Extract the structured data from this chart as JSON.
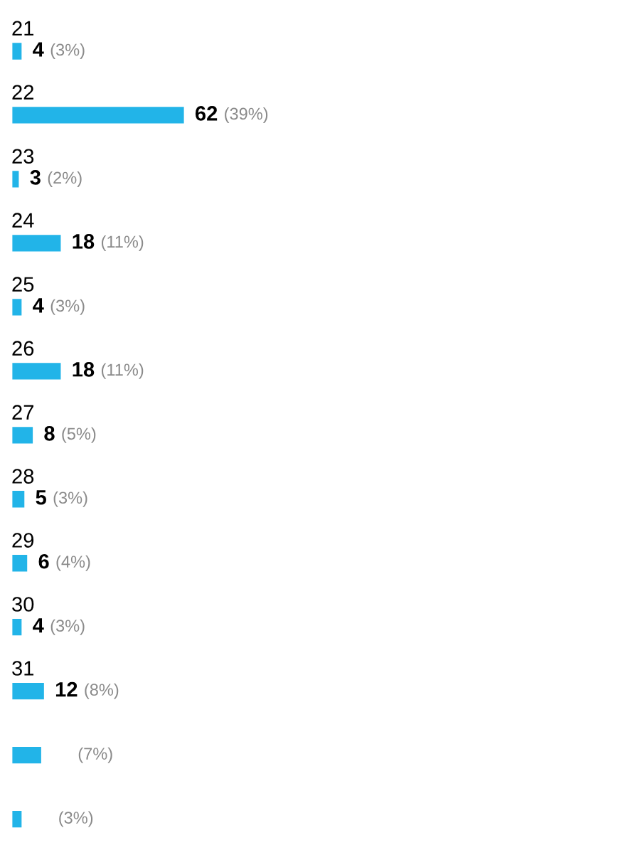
{
  "chart_data": {
    "type": "bar",
    "orientation": "horizontal",
    "categories": [
      "21",
      "22",
      "23",
      "24",
      "25",
      "26",
      "27",
      "28",
      "29",
      "30",
      "31",
      null,
      null
    ],
    "values": [
      4,
      62,
      3,
      18,
      4,
      18,
      8,
      5,
      6,
      4,
      12,
      11,
      4
    ],
    "value_labels": [
      "4 (3%)",
      "62 (39%)",
      "3 (2%)",
      "18 (11%)",
      "4 (3%)",
      "18 (11%)",
      "8 (5%)",
      "5 (3%)",
      "6 (4%)",
      "4 (3%)",
      "12 (8%)",
      null,
      null
    ],
    "annotations": [
      "(7%)",
      "(3%)"
    ],
    "color": "#22b4e8"
  }
}
